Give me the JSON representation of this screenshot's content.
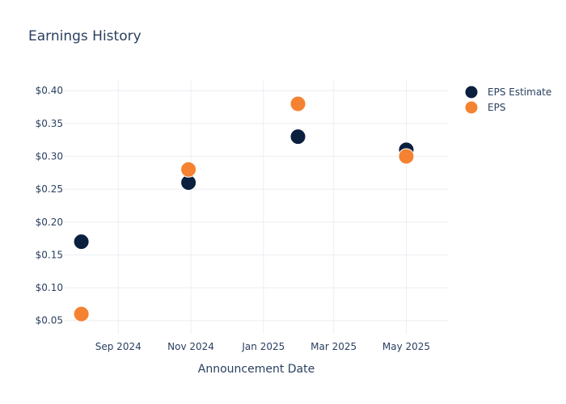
{
  "chart_data": {
    "type": "scatter",
    "title": "Earnings History",
    "xlabel": "Announcement Date",
    "ylabel": "",
    "x_type": "date",
    "xlim": [
      "2024-07-18",
      "2025-06-05"
    ],
    "ylim": [
      0.03,
      0.415
    ],
    "x_ticks": [
      {
        "date": "2024-09-01",
        "label": "Sep 2024"
      },
      {
        "date": "2024-11-01",
        "label": "Nov 2024"
      },
      {
        "date": "2025-01-01",
        "label": "Jan 2025"
      },
      {
        "date": "2025-03-01",
        "label": "Mar 2025"
      },
      {
        "date": "2025-05-01",
        "label": "May 2025"
      }
    ],
    "y_ticks": [
      {
        "value": 0.05,
        "label": "$0.05"
      },
      {
        "value": 0.1,
        "label": "$0.10"
      },
      {
        "value": 0.15,
        "label": "$0.15"
      },
      {
        "value": 0.2,
        "label": "$0.20"
      },
      {
        "value": 0.25,
        "label": "$0.25"
      },
      {
        "value": 0.3,
        "label": "$0.30"
      },
      {
        "value": 0.35,
        "label": "$0.35"
      },
      {
        "value": 0.4,
        "label": "$0.40"
      }
    ],
    "grid": true,
    "legend_position": "top-right",
    "series": [
      {
        "name": "EPS Estimate",
        "color": "#0b1f3f",
        "points": [
          {
            "x": "2024-08-01",
            "y": 0.17
          },
          {
            "x": "2024-10-30",
            "y": 0.26
          },
          {
            "x": "2025-01-30",
            "y": 0.33
          },
          {
            "x": "2025-05-01",
            "y": 0.31
          }
        ]
      },
      {
        "name": "EPS",
        "color": "#f58231",
        "points": [
          {
            "x": "2024-08-01",
            "y": 0.06
          },
          {
            "x": "2024-10-30",
            "y": 0.28
          },
          {
            "x": "2025-01-30",
            "y": 0.38
          },
          {
            "x": "2025-05-01",
            "y": 0.3
          }
        ]
      }
    ]
  }
}
